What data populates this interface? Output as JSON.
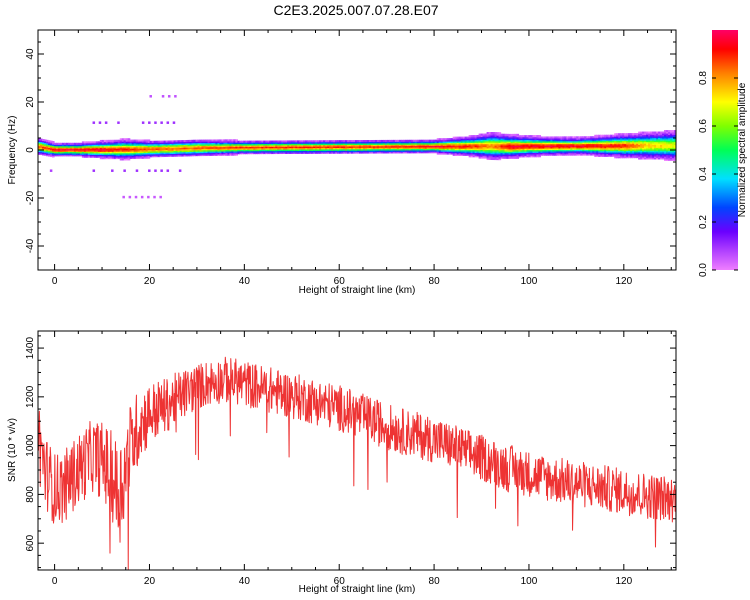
{
  "title": "C2E3.2025.007.07.28.E07",
  "chart_data": [
    {
      "type": "heatmap",
      "xlabel": "Height of straight line (km)",
      "ylabel": "Frequency (Hz)",
      "xlim": [
        -3.5,
        131
      ],
      "ylim": [
        -50,
        50
      ],
      "xticks": [
        0,
        20,
        40,
        60,
        80,
        100,
        120
      ],
      "yticks": [
        -40,
        -20,
        0,
        20,
        40
      ],
      "grid": false,
      "colorbar": {
        "label": "Normalized spectral amplitude",
        "range": [
          0,
          1
        ],
        "ticks": [
          "0.0",
          "0.2",
          "0.4",
          "0.6",
          "0.8"
        ],
        "colormap": [
          "#ef7fff",
          "#6a00ff",
          "#0044ff",
          "#00e0ff",
          "#00ff55",
          "#80ff00",
          "#ffff00",
          "#ff7f00",
          "#ff0000",
          "#ff0066"
        ]
      },
      "ridge": {
        "x": [
          -3,
          0,
          5,
          10,
          15,
          20,
          25,
          30,
          40,
          50,
          60,
          70,
          80,
          88,
          92,
          96,
          100,
          110,
          120,
          125,
          131
        ],
        "center_hz": [
          1.5,
          0.3,
          0.3,
          0.3,
          0.4,
          0.5,
          0.7,
          1.0,
          1.2,
          1.3,
          1.4,
          1.5,
          1.6,
          1.7,
          1.8,
          1.6,
          1.7,
          1.8,
          1.9,
          2.0,
          2.0
        ],
        "peak_amplitude": [
          0.85,
          0.95,
          0.95,
          0.95,
          0.9,
          0.85,
          0.85,
          0.85,
          0.9,
          0.9,
          0.9,
          0.9,
          0.95,
          0.9,
          0.8,
          0.95,
          0.95,
          0.95,
          0.9,
          0.75,
          0.7
        ],
        "halfwidth_hz": [
          2.5,
          2.0,
          2.0,
          2.5,
          3.0,
          2.5,
          2.5,
          2.5,
          2.0,
          2.0,
          2.0,
          2.0,
          2.0,
          3.0,
          4.0,
          3.5,
          3.0,
          2.5,
          3.5,
          4.0,
          4.5
        ]
      },
      "sidelobes": [
        {
          "x": [
            8,
            27
          ],
          "hz": 11,
          "amplitude": 0.1
        },
        {
          "x": [
            8,
            27
          ],
          "hz": -9,
          "amplitude": 0.1
        },
        {
          "x": [
            -1,
            3
          ],
          "hz": -9,
          "amplitude": 0.08
        },
        {
          "x": [
            20,
            26
          ],
          "hz": 22,
          "amplitude": 0.06
        },
        {
          "x": [
            13,
            27
          ],
          "hz": -20,
          "amplitude": 0.05
        },
        {
          "x": [
            -1,
            1
          ],
          "hz": -20,
          "amplitude": 0.05
        }
      ]
    },
    {
      "type": "line",
      "xlabel": "Height of straight line (km)",
      "ylabel": "SNR (10 * v/v)",
      "xlim": [
        -3.5,
        131
      ],
      "ylim": [
        490,
        1470
      ],
      "xticks": [
        0,
        20,
        40,
        60,
        80,
        100,
        120
      ],
      "yticks": [
        600,
        800,
        1000,
        1200,
        1400
      ],
      "grid": false,
      "series": [
        {
          "color": "#ee3333",
          "x": [
            -3.5,
            -2,
            0,
            2,
            5,
            8,
            10,
            12,
            13.5,
            15,
            16,
            18,
            20,
            22,
            24,
            26,
            28,
            30,
            32,
            34,
            36,
            38,
            40,
            42,
            44,
            46,
            48,
            50,
            52,
            54,
            56,
            58,
            60,
            62,
            64,
            66,
            68,
            70,
            72,
            74,
            76,
            78,
            80,
            82,
            84,
            86,
            88,
            90,
            92,
            94,
            96,
            98,
            100,
            102,
            104,
            106,
            108,
            110,
            112,
            114,
            116,
            118,
            120,
            122,
            124,
            126,
            128,
            131
          ],
          "mean": [
            1040,
            900,
            820,
            830,
            900,
            960,
            940,
            880,
            800,
            900,
            1000,
            1090,
            1130,
            1150,
            1170,
            1200,
            1220,
            1240,
            1255,
            1265,
            1270,
            1265,
            1255,
            1245,
            1235,
            1225,
            1215,
            1205,
            1195,
            1185,
            1175,
            1165,
            1155,
            1140,
            1125,
            1110,
            1095,
            1080,
            1065,
            1055,
            1045,
            1035,
            1025,
            1010,
            995,
            980,
            965,
            950,
            935,
            920,
            905,
            895,
            885,
            875,
            865,
            858,
            852,
            845,
            838,
            832,
            825,
            818,
            812,
            805,
            798,
            792,
            786,
            780
          ],
          "noise_amplitude": [
            180,
            150,
            150,
            150,
            150,
            150,
            160,
            180,
            220,
            200,
            180,
            150,
            130,
            120,
            110,
            105,
            100,
            95,
            95,
            95,
            95,
            95,
            95,
            95,
            95,
            95,
            95,
            95,
            95,
            95,
            95,
            95,
            95,
            95,
            95,
            95,
            95,
            95,
            95,
            95,
            95,
            95,
            95,
            95,
            95,
            95,
            95,
            95,
            95,
            95,
            100,
            95,
            95,
            95,
            95,
            95,
            95,
            95,
            95,
            95,
            95,
            95,
            95,
            95,
            95,
            95,
            95,
            95
          ]
        }
      ]
    }
  ]
}
